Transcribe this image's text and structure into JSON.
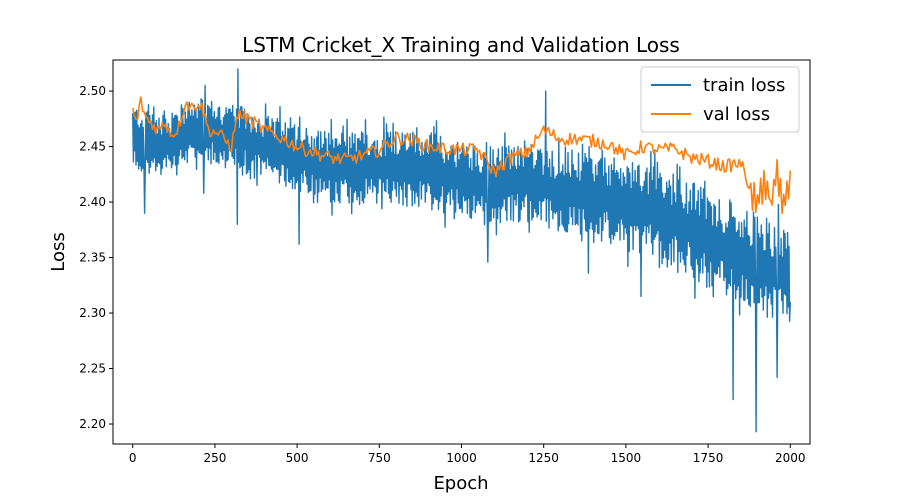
{
  "chart_data": {
    "type": "line",
    "title": "LSTM Cricket_X Training and Validation Loss",
    "xlabel": "Epoch",
    "ylabel": "Loss",
    "xlim": [
      -60,
      2060
    ],
    "ylim": [
      2.182,
      2.528
    ],
    "xticks": [
      0,
      250,
      500,
      750,
      1000,
      1250,
      1500,
      1750,
      2000
    ],
    "xtick_labels": [
      "0",
      "250",
      "500",
      "750",
      "1000",
      "1250",
      "1500",
      "1750",
      "2000"
    ],
    "yticks": [
      2.2,
      2.25,
      2.3,
      2.35,
      2.4,
      2.45,
      2.5
    ],
    "ytick_labels": [
      "2.20",
      "2.25",
      "2.30",
      "2.35",
      "2.40",
      "2.45",
      "2.50"
    ],
    "grid": false,
    "legend_position": "top-right",
    "colors": {
      "train": "#1f77b4",
      "val": "#ff7f0e"
    },
    "series": [
      {
        "name": "train loss",
        "color": "#1f77b4",
        "trend": {
          "x": [
            0,
            100,
            200,
            250,
            300,
            350,
            400,
            500,
            600,
            700,
            800,
            900,
            1000,
            1100,
            1200,
            1300,
            1400,
            1500,
            1600,
            1700,
            1800,
            1900,
            2000
          ],
          "y": [
            2.458,
            2.452,
            2.465,
            2.462,
            2.458,
            2.455,
            2.45,
            2.44,
            2.432,
            2.43,
            2.432,
            2.428,
            2.42,
            2.415,
            2.418,
            2.41,
            2.405,
            2.398,
            2.39,
            2.375,
            2.36,
            2.345,
            2.33
          ]
        },
        "band": {
          "x": [
            0,
            250,
            500,
            750,
            1000,
            1250,
            1500,
            1750,
            2000
          ],
          "halfwidth": [
            0.03,
            0.03,
            0.03,
            0.035,
            0.035,
            0.035,
            0.04,
            0.045,
            0.045
          ]
        },
        "extremes": [
          {
            "x": 35,
            "y": 2.39
          },
          {
            "x": 215,
            "y": 2.408
          },
          {
            "x": 320,
            "y": 2.52
          },
          {
            "x": 318,
            "y": 2.38
          },
          {
            "x": 505,
            "y": 2.362
          },
          {
            "x": 1080,
            "y": 2.346
          },
          {
            "x": 1255,
            "y": 2.5
          },
          {
            "x": 1385,
            "y": 2.336
          },
          {
            "x": 1545,
            "y": 2.315
          },
          {
            "x": 1825,
            "y": 2.222
          },
          {
            "x": 1895,
            "y": 2.193
          },
          {
            "x": 1960,
            "y": 2.242
          },
          {
            "x": 2000,
            "y": 2.31
          }
        ]
      },
      {
        "name": "val loss",
        "color": "#ff7f0e",
        "x": [
          0,
          10,
          25,
          40,
          60,
          80,
          100,
          120,
          140,
          160,
          180,
          200,
          215,
          230,
          260,
          300,
          320,
          350,
          400,
          450,
          500,
          550,
          600,
          650,
          700,
          750,
          800,
          850,
          900,
          950,
          1000,
          1050,
          1100,
          1150,
          1200,
          1250,
          1300,
          1350,
          1400,
          1450,
          1500,
          1550,
          1600,
          1650,
          1700,
          1750,
          1800,
          1850,
          1880,
          1900,
          1920,
          1940,
          1960,
          1980,
          2000
        ],
        "y": [
          2.482,
          2.472,
          2.49,
          2.476,
          2.47,
          2.465,
          2.472,
          2.46,
          2.468,
          2.49,
          2.485,
          2.49,
          2.482,
          2.465,
          2.462,
          2.45,
          2.48,
          2.475,
          2.465,
          2.458,
          2.45,
          2.445,
          2.44,
          2.438,
          2.442,
          2.447,
          2.458,
          2.456,
          2.45,
          2.448,
          2.447,
          2.447,
          2.427,
          2.44,
          2.445,
          2.465,
          2.457,
          2.457,
          2.455,
          2.452,
          2.442,
          2.45,
          2.447,
          2.448,
          2.44,
          2.437,
          2.432,
          2.435,
          2.41,
          2.395,
          2.42,
          2.4,
          2.425,
          2.395,
          2.425
        ],
        "noise": 0.006
      }
    ]
  }
}
